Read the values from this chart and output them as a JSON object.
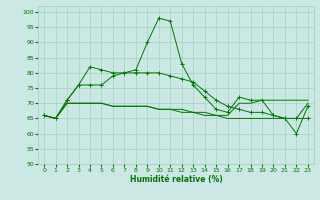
{
  "xlabel": "Humidité relative (%)",
  "xlim": [
    -0.5,
    23.5
  ],
  "ylim": [
    50,
    102
  ],
  "yticks": [
    50,
    55,
    60,
    65,
    70,
    75,
    80,
    85,
    90,
    95,
    100
  ],
  "xticks": [
    0,
    1,
    2,
    3,
    4,
    5,
    6,
    7,
    8,
    9,
    10,
    11,
    12,
    13,
    14,
    15,
    16,
    17,
    18,
    19,
    20,
    21,
    22,
    23
  ],
  "bg_color": "#cce8e4",
  "grid_color": "#99ccbb",
  "line_color": "#007700",
  "series": [
    [
      66,
      65,
      71,
      76,
      82,
      81,
      80,
      80,
      81,
      90,
      98,
      97,
      83,
      76,
      72,
      68,
      67,
      72,
      71,
      71,
      66,
      65,
      60,
      69
    ],
    [
      66,
      65,
      71,
      76,
      76,
      76,
      79,
      80,
      80,
      80,
      80,
      79,
      78,
      77,
      74,
      71,
      69,
      68,
      67,
      67,
      66,
      65,
      65,
      65
    ],
    [
      66,
      65,
      70,
      70,
      70,
      70,
      69,
      69,
      69,
      69,
      68,
      68,
      68,
      67,
      67,
      66,
      66,
      70,
      70,
      71,
      71,
      71,
      71,
      71
    ],
    [
      66,
      65,
      70,
      70,
      70,
      70,
      69,
      69,
      69,
      69,
      68,
      68,
      67,
      67,
      66,
      66,
      65,
      65,
      65,
      65,
      65,
      65,
      65,
      70
    ]
  ]
}
